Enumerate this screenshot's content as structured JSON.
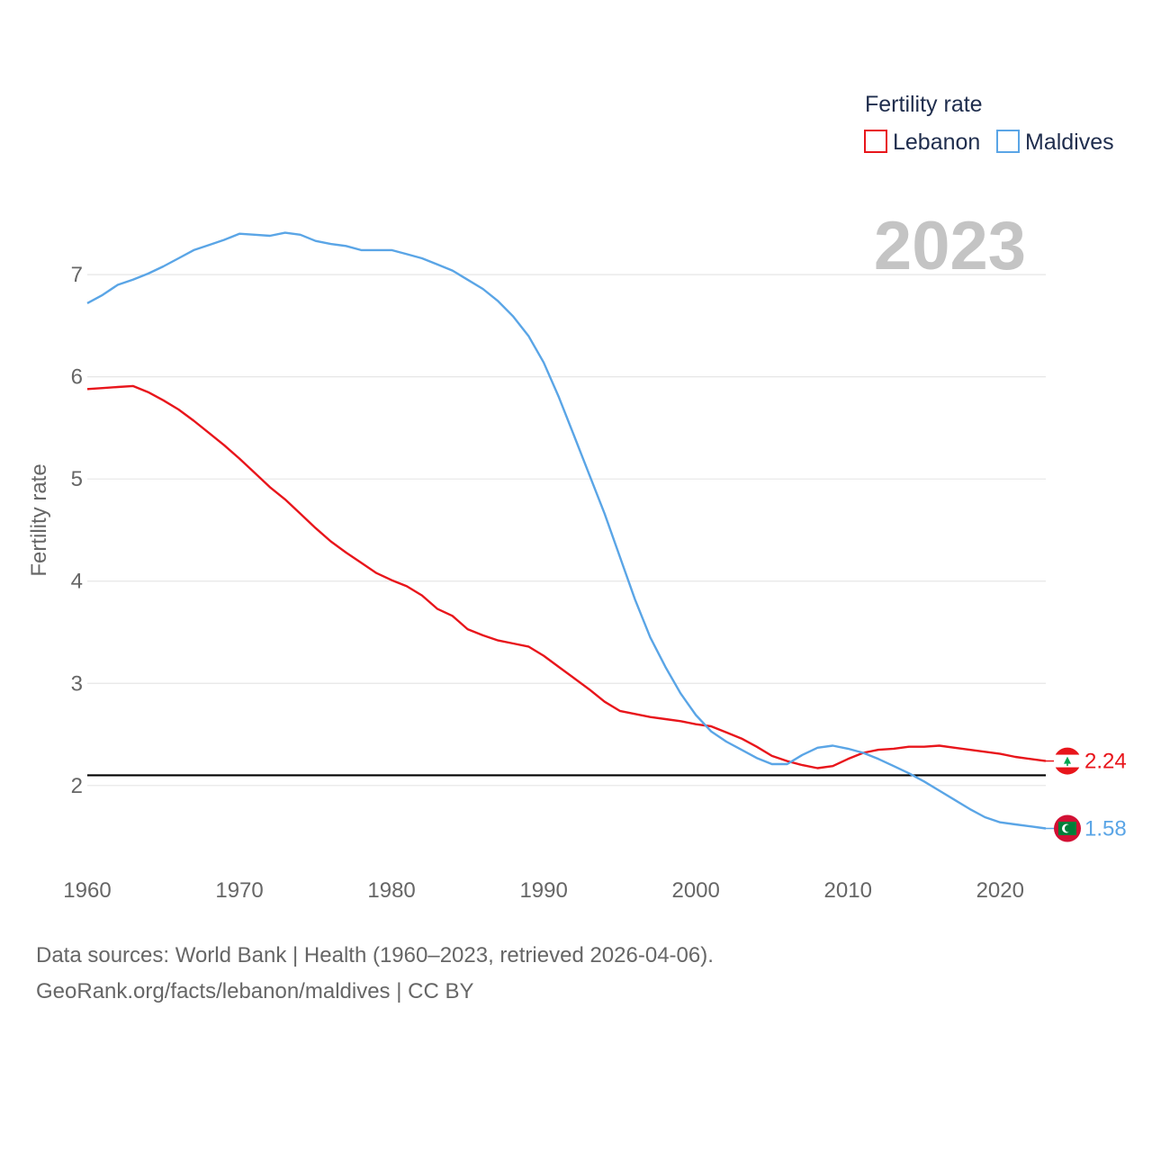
{
  "footer": {
    "line1": "Data sources: World Bank | Health (1960–2023, retrieved 2026-04-06).",
    "line2": "GeoRank.org/facts/lebanon/maldives | CC BY"
  },
  "chart_data": {
    "type": "line",
    "title": "Fertility rate",
    "year_stamp": "2023",
    "xlabel": "",
    "ylabel": "Fertility rate",
    "xlim": [
      1960,
      2023
    ],
    "ylim": [
      1.1,
      7.6
    ],
    "x_ticks": [
      "1960",
      "1970",
      "1980",
      "1990",
      "2000",
      "2010",
      "2020"
    ],
    "y_ticks": [
      "2",
      "3",
      "4",
      "5",
      "6",
      "7"
    ],
    "grid": true,
    "legend": "top-right",
    "reference_line": 2.1,
    "x": [
      1960,
      1961,
      1962,
      1963,
      1964,
      1965,
      1966,
      1967,
      1968,
      1969,
      1970,
      1971,
      1972,
      1973,
      1974,
      1975,
      1976,
      1977,
      1978,
      1979,
      1980,
      1981,
      1982,
      1983,
      1984,
      1985,
      1986,
      1987,
      1988,
      1989,
      1990,
      1991,
      1992,
      1993,
      1994,
      1995,
      1996,
      1997,
      1998,
      1999,
      2000,
      2001,
      2002,
      2003,
      2004,
      2005,
      2006,
      2007,
      2008,
      2009,
      2010,
      2011,
      2012,
      2013,
      2014,
      2015,
      2016,
      2017,
      2018,
      2019,
      2020,
      2021,
      2022,
      2023
    ],
    "series": [
      {
        "name": "Lebanon",
        "color": "#e8151b",
        "end_label": "2.24",
        "flag": "lebanon-flag-icon",
        "values": [
          5.88,
          5.89,
          5.9,
          5.91,
          5.85,
          5.77,
          5.68,
          5.57,
          5.45,
          5.33,
          5.2,
          5.06,
          4.92,
          4.8,
          4.66,
          4.52,
          4.39,
          4.28,
          4.18,
          4.08,
          4.01,
          3.95,
          3.86,
          3.73,
          3.66,
          3.53,
          3.47,
          3.42,
          3.39,
          3.36,
          3.27,
          3.16,
          3.05,
          2.94,
          2.82,
          2.73,
          2.7,
          2.67,
          2.65,
          2.63,
          2.6,
          2.58,
          2.52,
          2.46,
          2.38,
          2.29,
          2.24,
          2.2,
          2.17,
          2.19,
          2.26,
          2.32,
          2.35,
          2.36,
          2.38,
          2.38,
          2.39,
          2.37,
          2.35,
          2.33,
          2.31,
          2.28,
          2.26,
          2.24
        ]
      },
      {
        "name": "Maldives",
        "color": "#5aa5e6",
        "end_label": "1.58",
        "flag": "maldives-flag-icon",
        "values": [
          6.72,
          6.8,
          6.9,
          6.95,
          7.01,
          7.08,
          7.16,
          7.24,
          7.29,
          7.34,
          7.4,
          7.39,
          7.38,
          7.41,
          7.39,
          7.33,
          7.3,
          7.28,
          7.24,
          7.24,
          7.24,
          7.2,
          7.16,
          7.1,
          7.04,
          6.95,
          6.86,
          6.74,
          6.59,
          6.4,
          6.14,
          5.8,
          5.42,
          5.04,
          4.66,
          4.24,
          3.82,
          3.45,
          3.16,
          2.9,
          2.69,
          2.53,
          2.43,
          2.35,
          2.27,
          2.21,
          2.21,
          2.3,
          2.37,
          2.39,
          2.36,
          2.32,
          2.26,
          2.19,
          2.12,
          2.04,
          1.95,
          1.86,
          1.77,
          1.69,
          1.64,
          1.62,
          1.6,
          1.58
        ]
      }
    ]
  }
}
